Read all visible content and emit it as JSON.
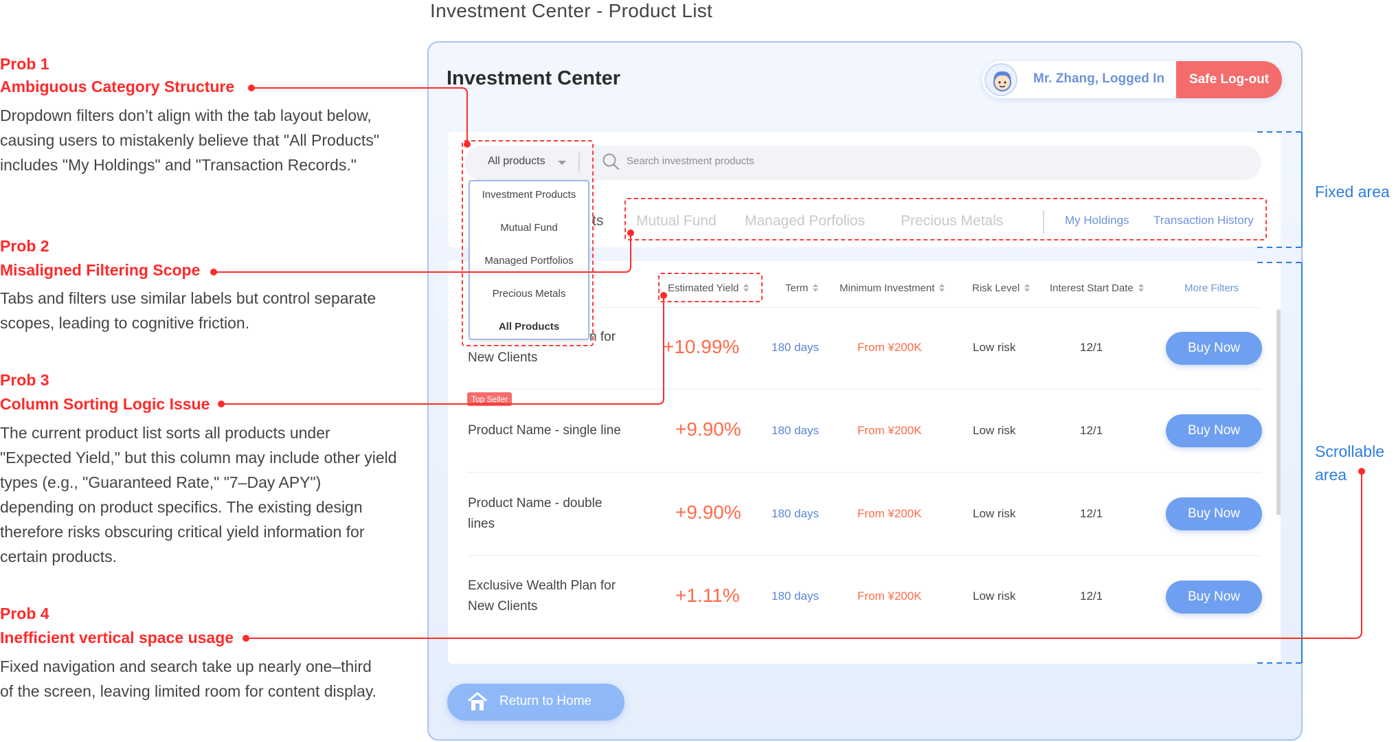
{
  "page_title": "Investment Center - Product List",
  "annotations": [
    {
      "number": "Prob 1",
      "heading": "Ambiguous Category Structure",
      "description": "Dropdown filters don’t align with the tab layout below, causing users to mistakenly believe that \"All Products\" includes \"My Holdings\" and \"Transaction Records.\""
    },
    {
      "number": "Prob 2",
      "heading": "Misaligned Filtering Scope",
      "description": "Tabs and filters use similar labels but control separate scopes, leading to cognitive friction."
    },
    {
      "number": "Prob 3",
      "heading": "Column Sorting Logic Issue",
      "description": "The current product list sorts all products under \"Expected Yield,\" but this column may include other yield types (e.g., \"Guaranteed Rate,\" \"7–Day APY\") depending on product specifics. The existing design therefore risks obscuring critical yield information for certain products."
    },
    {
      "number": "Prob 4",
      "heading": "Inefficient vertical space usage",
      "description": "Fixed navigation and search take up nearly one–third of the screen, leaving limited room for content display."
    }
  ],
  "side_labels": {
    "fixed": "Fixed area",
    "scrollable_line1": "Scrollable",
    "scrollable_line2": "area"
  },
  "app": {
    "title": "Investment Center",
    "user_label": "Mr. Zhang, Logged In",
    "logout_label": "Safe Log-out",
    "return_home_label": "Return to Home"
  },
  "search": {
    "dropdown_value": "All products",
    "placeholder": "Search investment products"
  },
  "dropdown_options": [
    "Investment Products",
    "Mutual Fund",
    "Managed Portfolios",
    "Precious Metals",
    "All Products"
  ],
  "tabs": {
    "partial_visible": "ts",
    "product_tabs": [
      "Mutual Fund",
      "Managed Porfolios",
      "Precious Metals"
    ],
    "account_tabs": [
      "My Holdings",
      "Transaction History"
    ]
  },
  "table": {
    "headers": {
      "yield": "Estimated Yield",
      "term": "Term",
      "min": "Minimum Investment",
      "risk": "Risk Level",
      "date": "Interest Start Date",
      "more": "More Filters"
    },
    "rows": [
      {
        "name_line1": "n for",
        "name_line2": "New Clients",
        "yield": "+10.99%",
        "term": "180 days",
        "min": "From ¥200K",
        "risk": "Low risk",
        "date": "12/1",
        "action": "Buy Now"
      },
      {
        "name_line1": "Product Name - single line",
        "name_line2": "",
        "yield": "+9.90%",
        "term": "180 days",
        "min": "From ¥200K",
        "risk": "Low risk",
        "date": "12/1",
        "action": "Buy Now",
        "badge": "Top Seller"
      },
      {
        "name_line1": "Product Name - double",
        "name_line2": "lines",
        "yield": "+9.90%",
        "term": "180 days",
        "min": "From ¥200K",
        "risk": "Low risk",
        "date": "12/1",
        "action": "Buy Now"
      },
      {
        "name_line1": "Exclusive Wealth Plan for",
        "name_line2": "New Clients",
        "yield": "+1.11%",
        "term": "180 days",
        "min": "From ¥200K",
        "risk": "Low risk",
        "date": "12/1",
        "action": "Buy Now"
      }
    ]
  },
  "colors": {
    "accent_red": "#ff2a2a",
    "accent_blue": "#2e7de0",
    "button_blue": "#6f9ff0",
    "logout_red": "#f56c6c"
  }
}
